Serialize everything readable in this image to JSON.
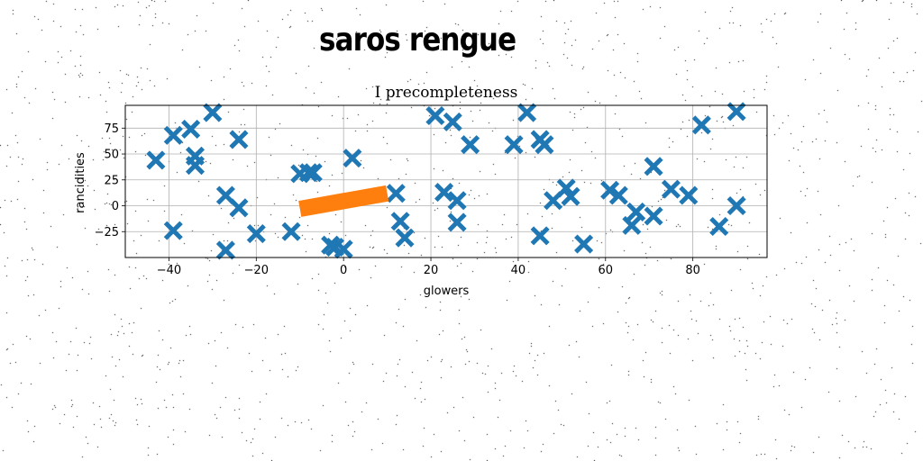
{
  "figure": {
    "suptitle": "saros rengue"
  },
  "chart_data": {
    "type": "scatter",
    "title": "I precompleteness",
    "xlabel": "glowers",
    "ylabel": "rancidities",
    "xlim": [
      -50,
      97
    ],
    "ylim": [
      -50,
      97
    ],
    "grid": true,
    "legend": "none",
    "xticks": [
      -40,
      -20,
      0,
      20,
      40,
      60,
      80
    ],
    "yticks": [
      -25,
      0,
      25,
      50,
      75
    ],
    "xtick_labels": [
      "−40",
      "−20",
      "0",
      "20",
      "40",
      "60",
      "80"
    ],
    "ytick_labels": [
      "−25",
      "0",
      "25",
      "50",
      "75"
    ],
    "series": [
      {
        "marker": "X",
        "color": "#1f77b4",
        "points": [
          [
            -43,
            44
          ],
          [
            -39,
            68
          ],
          [
            -39,
            -24
          ],
          [
            -35,
            74
          ],
          [
            -34,
            48
          ],
          [
            -34,
            39
          ],
          [
            -30,
            90
          ],
          [
            -27,
            10
          ],
          [
            -27,
            -43
          ],
          [
            -24,
            64
          ],
          [
            -24,
            -2
          ],
          [
            -20,
            -27
          ],
          [
            -12,
            -25
          ],
          [
            -10,
            31
          ],
          [
            -8,
            32
          ],
          [
            -7,
            32
          ],
          [
            -3,
            -38
          ],
          [
            -2,
            -40
          ],
          [
            0,
            -42
          ],
          [
            2,
            46
          ],
          [
            12,
            12
          ],
          [
            13,
            -15
          ],
          [
            14,
            -31
          ],
          [
            21,
            87
          ],
          [
            23,
            13
          ],
          [
            25,
            81
          ],
          [
            26,
            5
          ],
          [
            26,
            -16
          ],
          [
            29,
            59
          ],
          [
            39,
            59
          ],
          [
            42,
            90
          ],
          [
            45,
            64
          ],
          [
            45,
            -29
          ],
          [
            46,
            59
          ],
          [
            48,
            5
          ],
          [
            51,
            17
          ],
          [
            52,
            9
          ],
          [
            55,
            -37
          ],
          [
            61,
            15
          ],
          [
            63,
            10
          ],
          [
            66,
            -19
          ],
          [
            67,
            -6
          ],
          [
            71,
            38
          ],
          [
            71,
            -10
          ],
          [
            75,
            16
          ],
          [
            79,
            10
          ],
          [
            82,
            78
          ],
          [
            86,
            -20
          ],
          [
            90,
            91
          ],
          [
            90,
            0
          ]
        ]
      },
      {
        "marker": "polyline",
        "color": "#ff7f0e",
        "points": [
          [
            -10,
            -3
          ],
          [
            10,
            12
          ]
        ]
      }
    ]
  }
}
